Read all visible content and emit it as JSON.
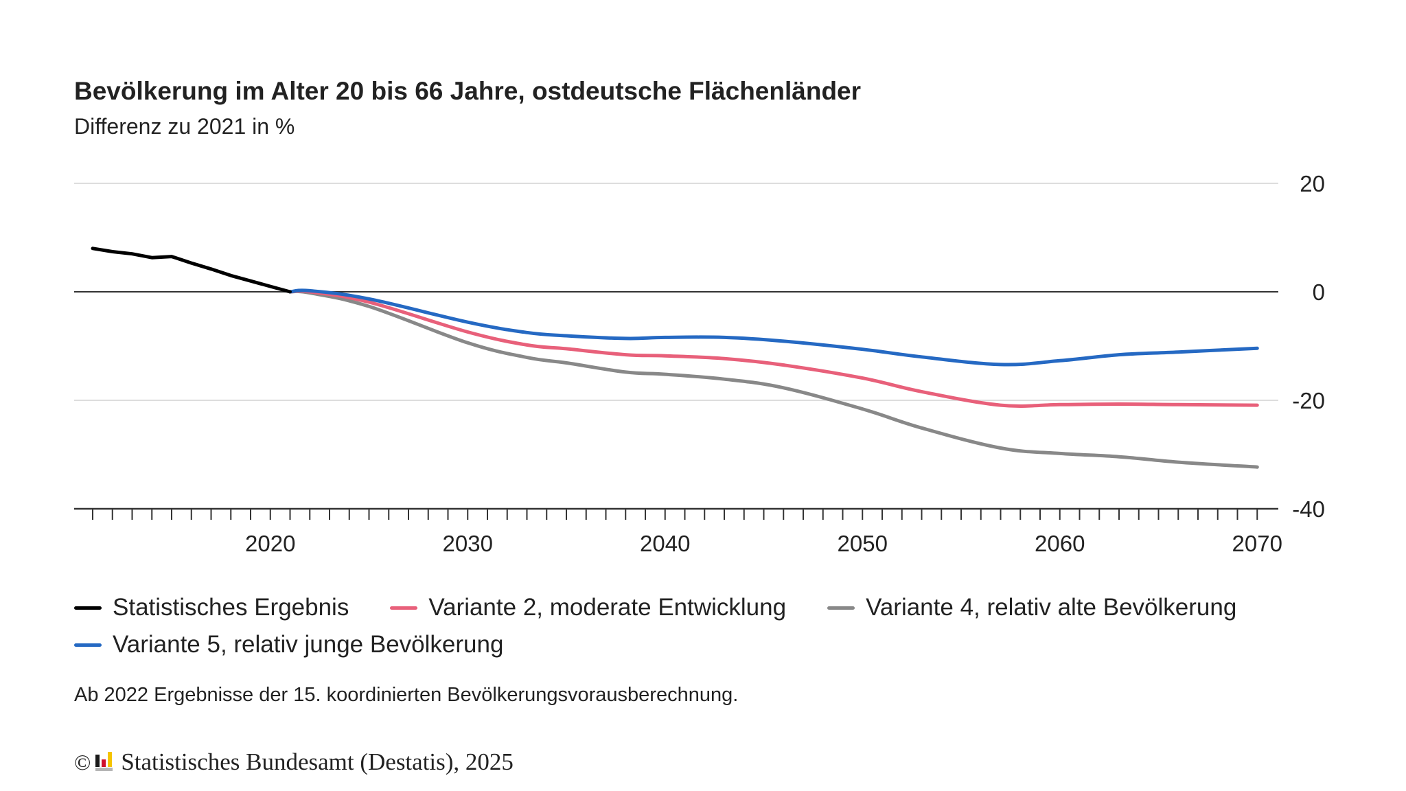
{
  "header": {
    "title": "Bevölkerung im Alter 20 bis 66 Jahre, ostdeutsche Flächenländer",
    "subtitle": "Differenz zu 2021 in %"
  },
  "chart_data": {
    "type": "line",
    "title": "Bevölkerung im Alter 20 bis 66 Jahre, ostdeutsche Flächenländer",
    "subtitle": "Differenz zu 2021 in %",
    "xlabel": "",
    "ylabel": "Differenz zu 2021 in %",
    "xlim": [
      2010,
      2071
    ],
    "ylim": [
      -40,
      20
    ],
    "x_ticks": [
      2020,
      2030,
      2040,
      2050,
      2060,
      2070
    ],
    "y_ticks": [
      20,
      0,
      -20,
      -40
    ],
    "y_axis_side": "right",
    "grid": true,
    "legend_position": "bottom",
    "series": [
      {
        "name": "Statistisches Ergebnis",
        "color": "#000000",
        "x": [
          2011,
          2012,
          2013,
          2014,
          2015,
          2016,
          2017,
          2018,
          2019,
          2020,
          2021
        ],
        "values": [
          8.0,
          7.4,
          7.0,
          6.3,
          6.5,
          5.3,
          4.2,
          3.0,
          2.0,
          1.0,
          0.0
        ]
      },
      {
        "name": "Variante 2, moderate Entwicklung",
        "color": "#e8607a",
        "x": [
          2021,
          2022,
          2025,
          2030,
          2033,
          2035,
          2038,
          2040,
          2043,
          2046,
          2050,
          2053,
          2057,
          2060,
          2063,
          2066,
          2070
        ],
        "values": [
          0.0,
          0.0,
          -1.9,
          -7.4,
          -9.8,
          -10.5,
          -11.6,
          -11.8,
          -12.3,
          -13.5,
          -15.9,
          -18.4,
          -20.9,
          -20.8,
          -20.7,
          -20.8,
          -20.9
        ]
      },
      {
        "name": "Variante 4, relativ alte Bevölkerung",
        "color": "#888888",
        "x": [
          2021,
          2022,
          2025,
          2030,
          2033,
          2035,
          2038,
          2040,
          2043,
          2046,
          2050,
          2053,
          2057,
          2060,
          2063,
          2066,
          2070
        ],
        "values": [
          0.0,
          -0.2,
          -2.7,
          -9.4,
          -12.1,
          -13.1,
          -14.8,
          -15.2,
          -16.1,
          -17.7,
          -21.6,
          -25.1,
          -28.8,
          -29.8,
          -30.4,
          -31.4,
          -32.3
        ]
      },
      {
        "name": "Variante 5, relativ junge Bevölkerung",
        "color": "#2569c3",
        "x": [
          2021,
          2022,
          2025,
          2030,
          2033,
          2035,
          2038,
          2040,
          2043,
          2046,
          2050,
          2053,
          2057,
          2060,
          2063,
          2066,
          2070
        ],
        "values": [
          0.0,
          0.2,
          -1.3,
          -5.6,
          -7.5,
          -8.1,
          -8.6,
          -8.4,
          -8.4,
          -9.1,
          -10.6,
          -12.0,
          -13.4,
          -12.7,
          -11.6,
          -11.1,
          -10.4
        ]
      }
    ],
    "annotations": [
      "Ab 2022 Ergebnisse der 15. koordinierten Bevölkerungsvorausberechnung."
    ]
  },
  "legend": {
    "items": [
      {
        "label": "Statistisches Ergebnis",
        "color": "#000000"
      },
      {
        "label": "Variante 2, moderate Entwicklung",
        "color": "#e8607a"
      },
      {
        "label": "Variante 4, relativ alte Bevölkerung",
        "color": "#888888"
      },
      {
        "label": "Variante 5, relativ junge Bevölkerung",
        "color": "#2569c3"
      }
    ]
  },
  "footnote": "Ab 2022 Ergebnisse der 15. koordinierten Bevölkerungsvorausberechnung.",
  "source": {
    "copyright_symbol": "©",
    "logo_icon": "destatis-logo-icon",
    "text": "Statistisches Bundesamt (Destatis), 2025",
    "logo_colors": [
      "#1a1a1a",
      "#d0102c",
      "#f5c400",
      "#b5b5b5"
    ]
  }
}
